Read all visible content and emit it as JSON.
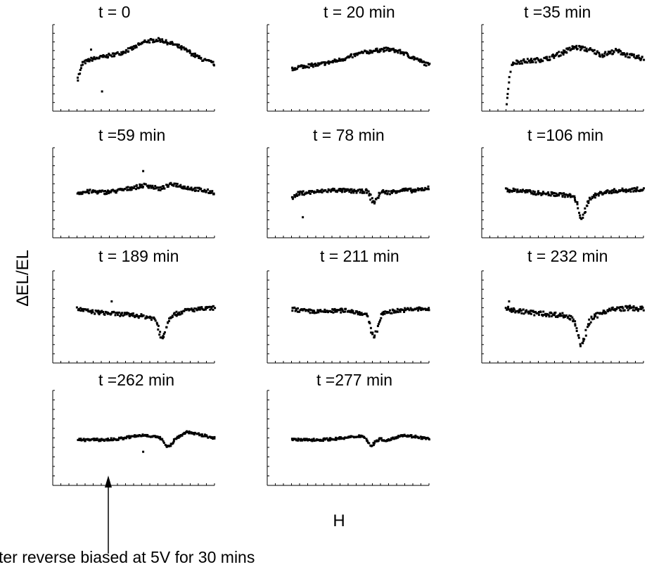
{
  "figure": {
    "ylabel": "∆EL/EL",
    "xlabel": "H",
    "annotation": "ter reverse biased at 5V for 30 mins"
  },
  "chart_data": [
    {
      "type": "scatter",
      "title": "t = 0",
      "baseline": 0.0,
      "shape": "rise",
      "dip": 0,
      "profile": [
        0.12,
        0.28,
        0.36,
        0.44,
        0.58,
        0.78,
        0.82,
        0.7,
        0.52,
        0.3,
        0.16
      ],
      "noise": 0.05,
      "outliers": [
        {
          "x": 0.18,
          "y": -0.6
        },
        {
          "x": 0.1,
          "y": 0.55
        }
      ],
      "start": -0.25
    },
    {
      "type": "scatter",
      "title": "t = 20 min",
      "baseline": 0.0,
      "shape": "rise",
      "dip": 0,
      "profile": [
        0.05,
        0.1,
        0.14,
        0.22,
        0.32,
        0.45,
        0.52,
        0.56,
        0.48,
        0.3,
        0.12
      ],
      "noise": 0.05,
      "outliers": [],
      "start": 0.0
    },
    {
      "type": "scatter",
      "title": "t =35 min",
      "baseline": 0.0,
      "shape": "rise",
      "dip": 0,
      "profile": [
        0.15,
        0.22,
        0.25,
        0.3,
        0.45,
        0.62,
        0.55,
        0.4,
        0.52,
        0.38,
        0.3
      ],
      "noise": 0.06,
      "outliers": [],
      "start": -0.9
    },
    {
      "type": "scatter",
      "title": "t =59 min",
      "baseline": 0.0,
      "shape": "flat",
      "dip": 0,
      "profile": [
        0.05,
        0.08,
        0.06,
        0.1,
        0.18,
        0.25,
        0.15,
        0.28,
        0.18,
        0.12,
        0.05
      ],
      "noise": 0.05,
      "outliers": [
        {
          "x": 0.48,
          "y": 0.62
        }
      ],
      "start": 0.05
    },
    {
      "type": "scatter",
      "title": "t = 78 min",
      "baseline": 0.0,
      "shape": "flat",
      "dip": 0.35,
      "dipx": 0.6,
      "profile": [
        0.0,
        0.05,
        0.08,
        0.12,
        0.1,
        0.08,
        0.15,
        0.05,
        0.12,
        0.1,
        0.18
      ],
      "noise": 0.05,
      "outliers": [
        {
          "x": 0.08,
          "y": -0.6
        }
      ],
      "start": -0.1
    },
    {
      "type": "scatter",
      "title": "t =106 min",
      "baseline": 0.0,
      "shape": "flat",
      "dip": 0.55,
      "dipx": 0.55,
      "profile": [
        0.12,
        0.1,
        0.05,
        0.02,
        0.0,
        -0.05,
        -0.1,
        0.05,
        0.1,
        0.12,
        0.15
      ],
      "noise": 0.05,
      "outliers": [],
      "start": 0.12
    },
    {
      "type": "scatter",
      "title": "t = 189 min",
      "baseline": 0.0,
      "shape": "flat",
      "dip": 0.5,
      "dipx": 0.62,
      "profile": [
        0.25,
        0.18,
        0.15,
        0.12,
        0.1,
        0.05,
        0.0,
        0.1,
        0.22,
        0.25,
        0.28
      ],
      "noise": 0.05,
      "outliers": [
        {
          "x": 0.25,
          "y": 0.45
        }
      ],
      "start": 0.25
    },
    {
      "type": "scatter",
      "title": "t = 211 min",
      "baseline": 0.0,
      "shape": "flat",
      "dip": 0.55,
      "dipx": 0.6,
      "profile": [
        0.25,
        0.2,
        0.18,
        0.2,
        0.22,
        0.15,
        0.1,
        0.18,
        0.22,
        0.25,
        0.25
      ],
      "noise": 0.05,
      "outliers": [],
      "start": 0.25
    },
    {
      "type": "scatter",
      "title": "t = 232 min",
      "baseline": 0.0,
      "shape": "flat",
      "dip": 0.65,
      "dipx": 0.55,
      "profile": [
        0.25,
        0.2,
        0.15,
        0.12,
        0.1,
        0.0,
        -0.05,
        0.18,
        0.25,
        0.28,
        0.25
      ],
      "noise": 0.06,
      "outliers": [
        {
          "x": 0.02,
          "y": 0.45
        }
      ],
      "start": 0.25
    },
    {
      "type": "scatter",
      "title": "t =262 min",
      "baseline": 0.0,
      "shape": "flat",
      "dip": 0.18,
      "dipx": 0.66,
      "profile": [
        0.0,
        0.0,
        0.0,
        0.02,
        0.08,
        0.12,
        0.05,
        0.0,
        0.2,
        0.12,
        0.05
      ],
      "noise": 0.03,
      "outliers": [
        {
          "x": 0.48,
          "y": -0.3
        }
      ],
      "start": 0.0
    },
    {
      "type": "scatter",
      "title": "t =277 min",
      "baseline": 0.0,
      "shape": "flat",
      "dip": 0.2,
      "dipx": 0.58,
      "profile": [
        0.0,
        0.0,
        0.0,
        0.02,
        0.05,
        0.1,
        0.05,
        -0.02,
        0.12,
        0.08,
        0.02
      ],
      "noise": 0.03,
      "outliers": [],
      "start": 0.0
    }
  ]
}
